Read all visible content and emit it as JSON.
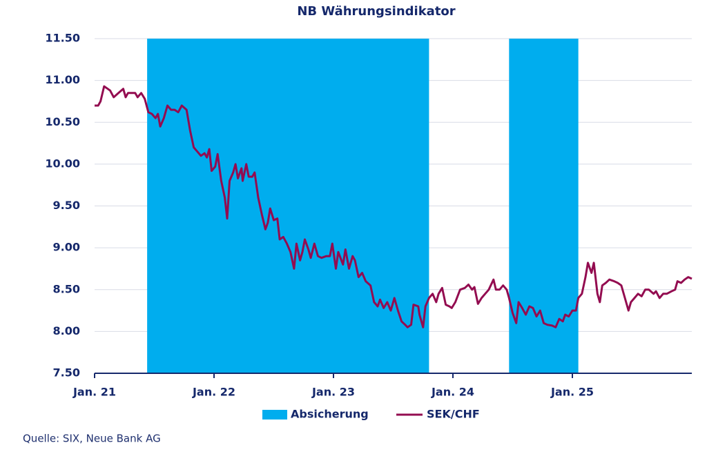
{
  "chart_data": {
    "type": "line",
    "title": "NB Währungsindikator",
    "x": [
      2021.0,
      2021.03,
      2021.05,
      2021.08,
      2021.11,
      2021.13,
      2021.16,
      2021.2,
      2021.24,
      2021.26,
      2021.28,
      2021.34,
      2021.36,
      2021.39,
      2021.42,
      2021.45,
      2021.48,
      2021.51,
      2021.53,
      2021.55,
      2021.58,
      2021.61,
      2021.64,
      2021.67,
      2021.7,
      2021.73,
      2021.77,
      2021.8,
      2021.83,
      2021.86,
      2021.89,
      2021.92,
      2021.94,
      2021.96,
      2021.98,
      2022.01,
      2022.03,
      2022.06,
      2022.09,
      2022.11,
      2022.13,
      2022.16,
      2022.18,
      2022.2,
      2022.23,
      2022.24,
      2022.27,
      2022.29,
      2022.32,
      2022.34,
      2022.37,
      2022.4,
      2022.43,
      2022.45,
      2022.47,
      2022.5,
      2022.53,
      2022.55,
      2022.58,
      2022.61,
      2022.64,
      2022.67,
      2022.69,
      2022.72,
      2022.74,
      2022.76,
      2022.79,
      2022.81,
      2022.84,
      2022.87,
      2022.9,
      2022.94,
      2022.97,
      2022.99,
      2023.02,
      2023.04,
      2023.08,
      2023.1,
      2023.13,
      2023.16,
      2023.18,
      2023.21,
      2023.24,
      2023.27,
      2023.31,
      2023.34,
      2023.37,
      2023.39,
      2023.42,
      2023.45,
      2023.48,
      2023.51,
      2023.54,
      2023.57,
      2023.6,
      2023.62,
      2023.65,
      2023.67,
      2023.71,
      2023.72,
      2023.75,
      2023.77,
      2023.8,
      2023.83,
      2023.86,
      2023.88,
      2023.91,
      2023.94,
      2023.97,
      2023.99,
      2024.02,
      2024.06,
      2024.1,
      2024.13,
      2024.16,
      2024.18,
      2024.21,
      2024.24,
      2024.27,
      2024.3,
      2024.34,
      2024.36,
      2024.39,
      2024.42,
      2024.45,
      2024.47,
      2024.5,
      2024.53,
      2024.55,
      2024.58,
      2024.61,
      2024.64,
      2024.67,
      2024.7,
      2024.73,
      2024.76,
      2024.79,
      2024.83,
      2024.86,
      2024.89,
      2024.92,
      2024.94,
      2024.97,
      2025.0,
      2025.03,
      2025.05,
      2025.08,
      2025.11,
      2025.13,
      2025.16,
      2025.18,
      2025.21,
      2025.23,
      2025.25,
      2025.28,
      2025.31,
      2025.35,
      2025.38,
      2025.41,
      2025.44,
      2025.47,
      2025.49,
      2025.52,
      2025.55,
      2025.58,
      2025.61,
      2025.64,
      2025.68,
      2025.7,
      2025.73,
      2025.76,
      2025.79,
      2025.83,
      2025.86,
      2025.88,
      2025.91,
      2025.94,
      2025.97,
      2026.0
    ],
    "series": [
      {
        "name": "SEK/CHF",
        "color": "#930c50",
        "values": [
          10.7,
          10.7,
          10.75,
          10.93,
          10.9,
          10.88,
          10.8,
          10.85,
          10.9,
          10.8,
          10.85,
          10.85,
          10.8,
          10.85,
          10.78,
          10.62,
          10.6,
          10.55,
          10.6,
          10.45,
          10.55,
          10.7,
          10.65,
          10.65,
          10.62,
          10.7,
          10.65,
          10.4,
          10.2,
          10.15,
          10.1,
          10.13,
          10.08,
          10.18,
          9.92,
          9.97,
          10.12,
          9.8,
          9.6,
          9.35,
          9.8,
          9.9,
          10.0,
          9.83,
          9.95,
          9.8,
          10.0,
          9.85,
          9.85,
          9.9,
          9.6,
          9.4,
          9.22,
          9.3,
          9.47,
          9.33,
          9.35,
          9.1,
          9.13,
          9.05,
          8.95,
          8.75,
          9.05,
          8.85,
          8.95,
          9.1,
          8.98,
          8.88,
          9.05,
          8.9,
          8.88,
          8.9,
          8.9,
          9.05,
          8.75,
          8.95,
          8.8,
          8.98,
          8.75,
          8.9,
          8.85,
          8.65,
          8.7,
          8.6,
          8.55,
          8.35,
          8.3,
          8.38,
          8.28,
          8.35,
          8.25,
          8.4,
          8.25,
          8.12,
          8.08,
          8.05,
          8.08,
          8.32,
          8.3,
          8.2,
          8.05,
          8.3,
          8.4,
          8.45,
          8.35,
          8.45,
          8.52,
          8.32,
          8.3,
          8.28,
          8.35,
          8.5,
          8.52,
          8.56,
          8.5,
          8.53,
          8.33,
          8.4,
          8.45,
          8.5,
          8.62,
          8.5,
          8.5,
          8.55,
          8.5,
          8.4,
          8.22,
          8.1,
          8.35,
          8.28,
          8.2,
          8.3,
          8.28,
          8.18,
          8.25,
          8.1,
          8.08,
          8.07,
          8.05,
          8.15,
          8.12,
          8.2,
          8.18,
          8.25,
          8.25,
          8.4,
          8.45,
          8.65,
          8.82,
          8.7,
          8.82,
          8.45,
          8.35,
          8.55,
          8.58,
          8.62,
          8.6,
          8.58,
          8.55,
          8.4,
          8.25,
          8.35,
          8.4,
          8.45,
          8.42,
          8.5,
          8.5,
          8.45,
          8.48,
          8.4,
          8.45,
          8.45,
          8.48,
          8.5,
          8.6,
          8.58,
          8.62,
          8.65,
          8.63
        ]
      }
    ],
    "shading": {
      "name": "Absicherung",
      "color": "#00adee",
      "ranges": [
        [
          2021.44,
          2023.8
        ],
        [
          2024.47,
          2025.05
        ]
      ]
    },
    "xlim": [
      2021,
      2026
    ],
    "xticks": [
      {
        "value": 2021,
        "label": "Jan. 21"
      },
      {
        "value": 2022,
        "label": "Jan. 22"
      },
      {
        "value": 2023,
        "label": "Jan. 23"
      },
      {
        "value": 2024,
        "label": "Jan. 24"
      },
      {
        "value": 2025,
        "label": "Jan. 25"
      }
    ],
    "ylim": [
      7.5,
      11.5
    ],
    "yticks": [
      {
        "value": 7.5,
        "label": "7.50"
      },
      {
        "value": 8,
        "label": "8.00"
      },
      {
        "value": 8.5,
        "label": "8.50"
      },
      {
        "value": 9,
        "label": "9.00"
      },
      {
        "value": 9.5,
        "label": "9.50"
      },
      {
        "value": 10,
        "label": "10.00"
      },
      {
        "value": 10.5,
        "label": "10.50"
      },
      {
        "value": 11,
        "label": "11.00"
      },
      {
        "value": 11.5,
        "label": "11.50"
      }
    ],
    "grid": true,
    "legend": "bottom"
  },
  "source": "Quelle: SIX, Neue Bank AG"
}
